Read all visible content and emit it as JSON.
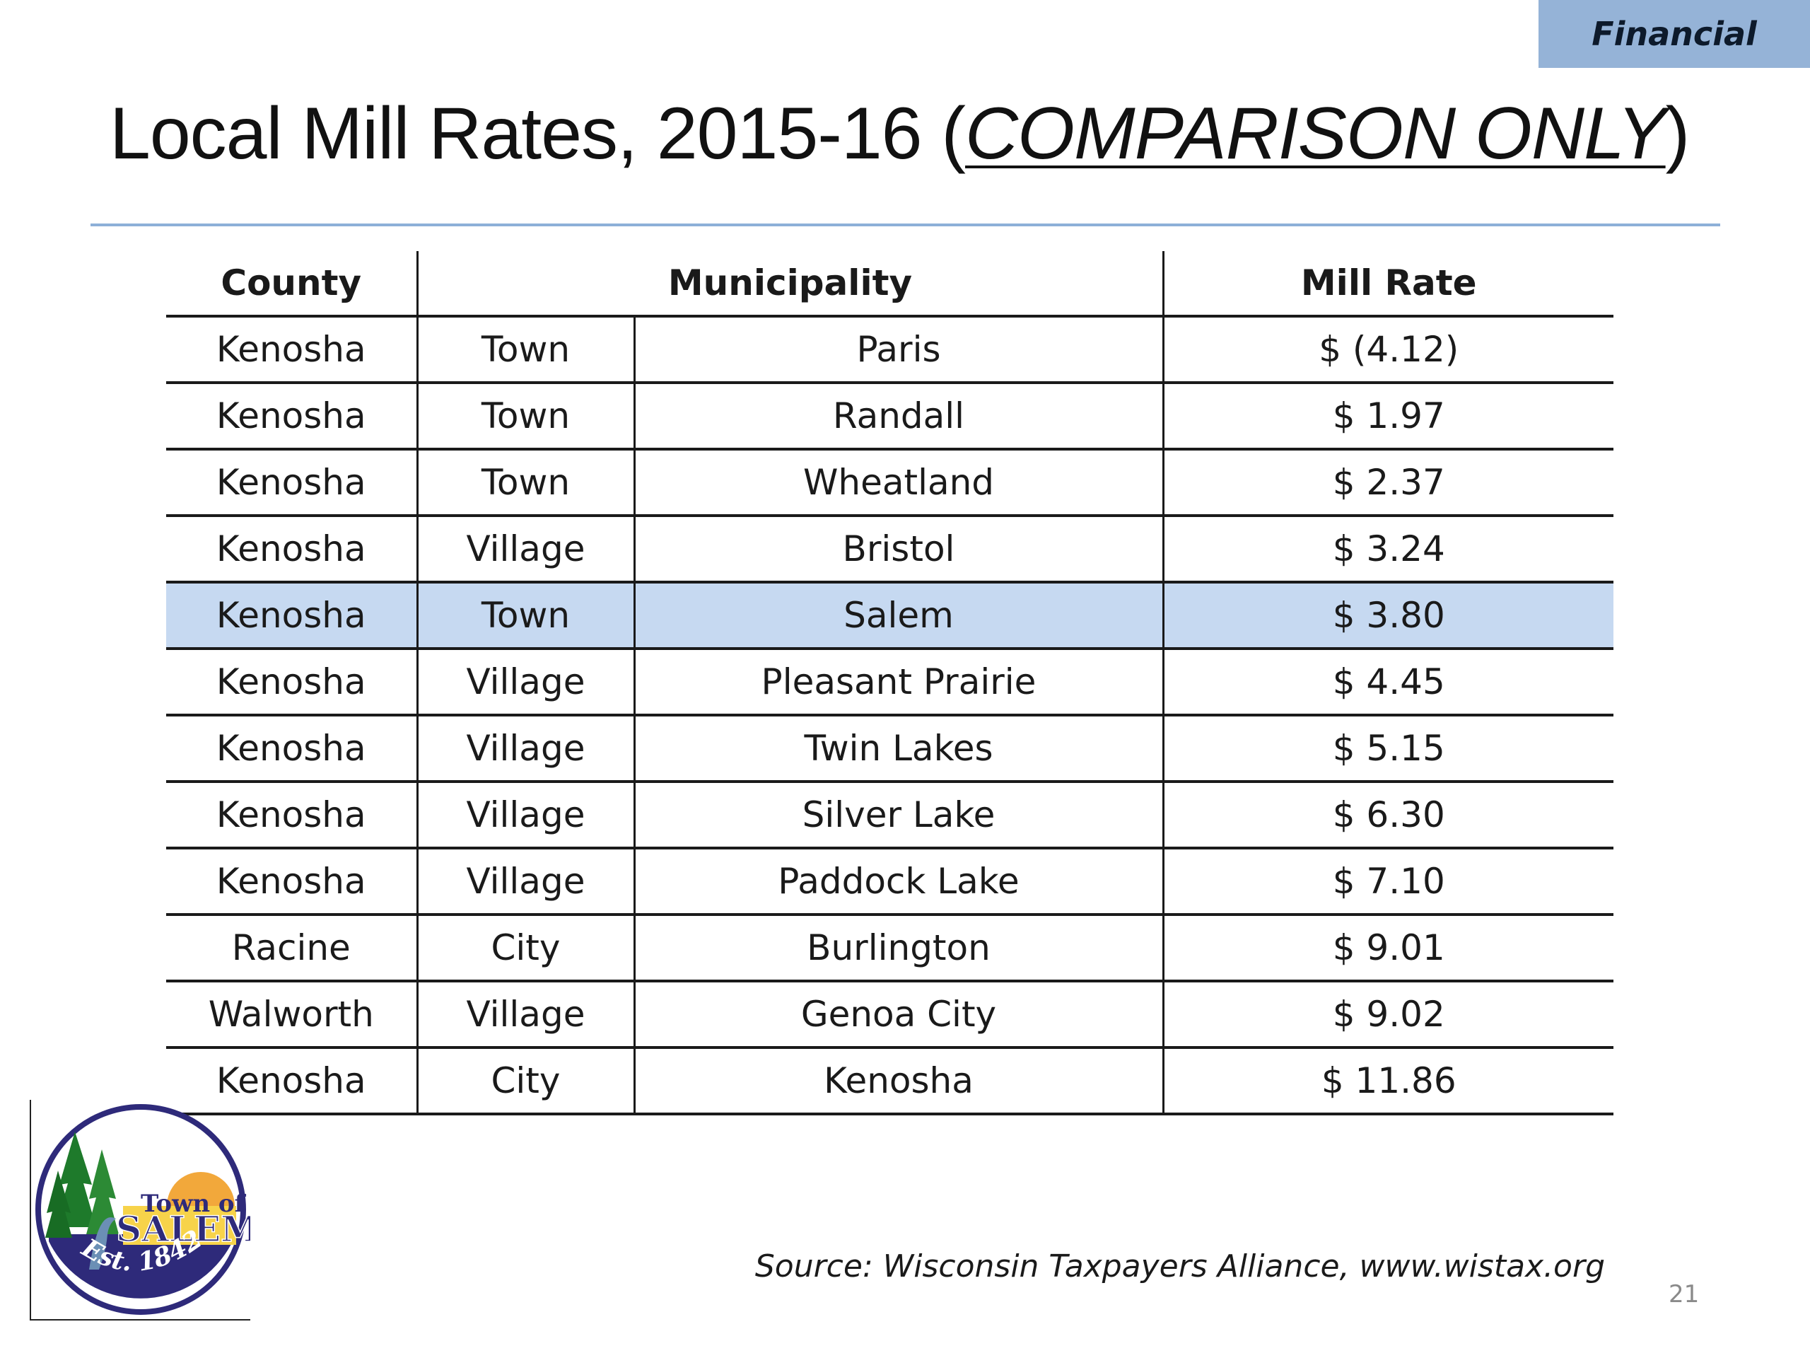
{
  "section_tag": "Financial",
  "title": {
    "main": "Local Mill Rates, 2015-16 (",
    "emphasis": "COMPARISON ONLY",
    "close": ")"
  },
  "table": {
    "headers": {
      "county": "County",
      "municipality": "Municipality",
      "mill_rate": "Mill Rate"
    },
    "rows": [
      {
        "county": "Kenosha",
        "type": "Town",
        "name": "Paris",
        "rate": "$ (4.12)"
      },
      {
        "county": "Kenosha",
        "type": "Town",
        "name": "Randall",
        "rate": "$ 1.97"
      },
      {
        "county": "Kenosha",
        "type": "Town",
        "name": "Wheatland",
        "rate": "$ 2.37"
      },
      {
        "county": "Kenosha",
        "type": "Village",
        "name": "Bristol",
        "rate": "$ 3.24"
      },
      {
        "county": "Kenosha",
        "type": "Town",
        "name": "Salem",
        "rate": "$ 3.80",
        "highlight": true
      },
      {
        "county": "Kenosha",
        "type": "Village",
        "name": "Pleasant Prairie",
        "rate": "$ 4.45"
      },
      {
        "county": "Kenosha",
        "type": "Village",
        "name": "Twin Lakes",
        "rate": "$ 5.15"
      },
      {
        "county": "Kenosha",
        "type": "Village",
        "name": "Silver Lake",
        "rate": "$ 6.30"
      },
      {
        "county": "Kenosha",
        "type": "Village",
        "name": "Paddock Lake",
        "rate": "$ 7.10"
      },
      {
        "county": "Racine",
        "type": "City",
        "name": "Burlington",
        "rate": "$ 9.01"
      },
      {
        "county": "Walworth",
        "type": "Village",
        "name": "Genoa City",
        "rate": "$ 9.02"
      },
      {
        "county": "Kenosha",
        "type": "City",
        "name": "Kenosha",
        "rate": "$ 11.86"
      }
    ],
    "highlight_color": "#c6d9f1"
  },
  "logo": {
    "line1": "Town of",
    "line2": "SALEM",
    "established": "Est. 1842",
    "ring_color": "#2e2a7a"
  },
  "source": "Source: Wisconsin Taxpayers Alliance, www.wistax.org",
  "page_number": "21",
  "colors": {
    "tag_bg": "#95b3d7",
    "rule": "#8db0d8"
  }
}
